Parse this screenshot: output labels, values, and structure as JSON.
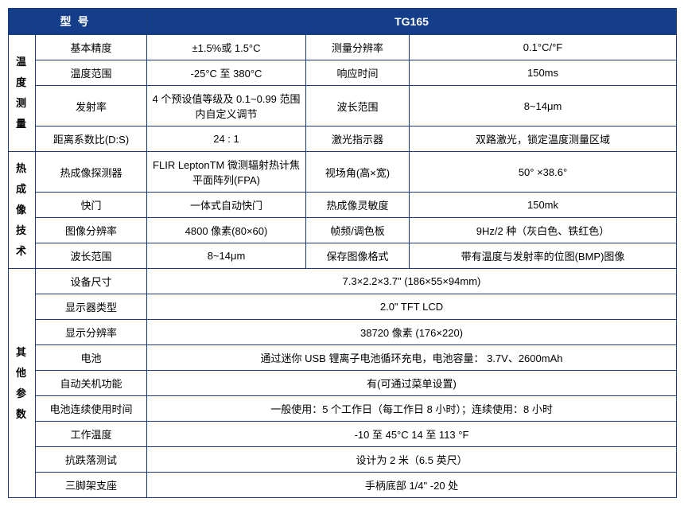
{
  "header": {
    "model_label": "型号",
    "model_value": "TG165"
  },
  "colors": {
    "header_bg": "#143d8a",
    "header_text": "#ffffff",
    "border": "#1a3a7a"
  },
  "font": {
    "family": "Microsoft YaHei",
    "size_body": 13,
    "size_header": 14
  },
  "sections": [
    {
      "title": "温度测量",
      "rows": [
        {
          "l1": "基本精度",
          "v1": "±1.5%或 1.5°C",
          "l2": "测量分辨率",
          "v2": "0.1°C/°F"
        },
        {
          "l1": "温度范围",
          "v1": "-25°C 至 380°C",
          "l2": "响应时间",
          "v2": "150ms"
        },
        {
          "l1": "发射率",
          "v1": "4 个预设值等级及 0.1~0.99 范围内自定义调节",
          "l2": "波长范围",
          "v2": "8~14μm"
        },
        {
          "l1": "距离系数比(D:S)",
          "v1": "24 : 1",
          "l2": "激光指示器",
          "v2": "双路激光，锁定温度测量区域"
        }
      ]
    },
    {
      "title": "热成像技术",
      "rows": [
        {
          "l1": "热成像探测器",
          "v1": "FLIR LeptonTM 微测辐射热计焦平面阵列(FPA)",
          "l2": "视场角(高×宽)",
          "v2": "50° ×38.6°"
        },
        {
          "l1": "快门",
          "v1": "一体式自动快门",
          "l2": "热成像灵敏度",
          "v2": "150mk"
        },
        {
          "l1": "图像分辨率",
          "v1": "4800 像素(80×60)",
          "l2": "帧频/调色板",
          "v2": "9Hz/2 种（灰白色、铁红色）"
        },
        {
          "l1": "波长范围",
          "v1": "8~14μm",
          "l2": "保存图像格式",
          "v2": "带有温度与发射率的位图(BMP)图像"
        }
      ]
    },
    {
      "title": "其他参数",
      "rows": [
        {
          "l1": "设备尺寸",
          "v1": "7.3×2.2×3.7\"  (186×55×94mm)"
        },
        {
          "l1": "显示器类型",
          "v1": "2.0\"  TFT LCD"
        },
        {
          "l1": "显示分辨率",
          "v1": "38720 像素  (176×220)"
        },
        {
          "l1": "电池",
          "v1": "通过迷你 USB 锂离子电池循环充电，电池容量：  3.7V、2600mAh"
        },
        {
          "l1": "自动关机功能",
          "v1": "有(可通过菜单设置)"
        },
        {
          "l1": "电池连续使用时间",
          "v1": "一般使用：5 个工作日（每工作日 8 小时）；连续使用：8 小时"
        },
        {
          "l1": "工作温度",
          "v1": "-10 至 45°C 14 至 113 °F"
        },
        {
          "l1": "抗跌落测试",
          "v1": "设计为 2 米（6.5 英尺）"
        },
        {
          "l1": "三脚架支座",
          "v1": "手柄底部 1/4\"  -20 处"
        }
      ]
    }
  ]
}
